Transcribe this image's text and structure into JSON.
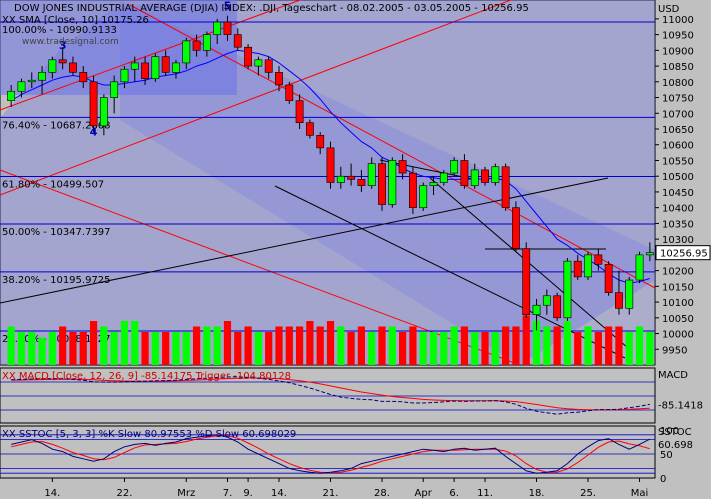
{
  "chart_data": {
    "type": "candlestick",
    "title": "DOW JONES INDUSTRIAL AVERAGE (DJIA) INDEX: .DJI, Tageschart - 08.02.2005 - 03.05.2005 - 10256.95",
    "sma_label": "XX SMA [Close, 10] 10175.26",
    "watermark": "www.tradesignal.com",
    "currency_label": "USD",
    "last_price_label": "10256.95",
    "price_axis": {
      "ylim": [
        9900,
        11060
      ],
      "ticks": [
        "11000",
        "10950",
        "10900",
        "10850",
        "10800",
        "10750",
        "10700",
        "10650",
        "10600",
        "10550",
        "10500",
        "10450",
        "10400",
        "10350",
        "10300",
        "10250",
        "10200",
        "10150",
        "10100",
        "10050",
        "10000",
        "9950"
      ]
    },
    "fib_levels": [
      {
        "label": "100.00% - 10990.9133",
        "value": 10990
      },
      {
        "label": "76.40% - 10687.2868",
        "value": 10687
      },
      {
        "label": "61.80% - 10499.507",
        "value": 10499
      },
      {
        "label": "50.00% - 10347.7397",
        "value": 10348
      },
      {
        "label": "38.20% - 10195.9725",
        "value": 10196
      },
      {
        "label": "23.60% - 10008.1927",
        "value": 10008
      }
    ],
    "wave_labels": [
      {
        "label": "5",
        "bar": 21,
        "value": 11030
      },
      {
        "label": "3",
        "bar": 5,
        "value": 10905
      },
      {
        "label": "4",
        "bar": 8,
        "value": 10630
      }
    ],
    "x_tick_labels": [
      {
        "label": "14.",
        "bar": 4
      },
      {
        "label": "22.",
        "bar": 11
      },
      {
        "label": "Mrz",
        "bar": 17
      },
      {
        "label": "7.",
        "bar": 21
      },
      {
        "label": "9.",
        "bar": 23
      },
      {
        "label": "14.",
        "bar": 26
      },
      {
        "label": "21.",
        "bar": 31
      },
      {
        "label": "28.",
        "bar": 36
      },
      {
        "label": "Apr",
        "bar": 40
      },
      {
        "label": "6.",
        "bar": 43
      },
      {
        "label": "11.",
        "bar": 46
      },
      {
        "label": "18.",
        "bar": 51
      },
      {
        "label": "25.",
        "bar": 56
      },
      {
        "label": "Mai",
        "bar": 61
      }
    ],
    "candles": [
      {
        "o": 10740,
        "h": 10790,
        "l": 10720,
        "c": 10770
      },
      {
        "o": 10770,
        "h": 10810,
        "l": 10750,
        "c": 10800
      },
      {
        "o": 10800,
        "h": 10830,
        "l": 10780,
        "c": 10805
      },
      {
        "o": 10805,
        "h": 10850,
        "l": 10760,
        "c": 10830
      },
      {
        "o": 10830,
        "h": 10880,
        "l": 10810,
        "c": 10870
      },
      {
        "o": 10870,
        "h": 10910,
        "l": 10840,
        "c": 10860
      },
      {
        "o": 10860,
        "h": 10880,
        "l": 10820,
        "c": 10830
      },
      {
        "o": 10830,
        "h": 10850,
        "l": 10780,
        "c": 10800
      },
      {
        "o": 10800,
        "h": 10820,
        "l": 10640,
        "c": 10660
      },
      {
        "o": 10660,
        "h": 10760,
        "l": 10630,
        "c": 10750
      },
      {
        "o": 10750,
        "h": 10820,
        "l": 10700,
        "c": 10800
      },
      {
        "o": 10800,
        "h": 10850,
        "l": 10780,
        "c": 10840
      },
      {
        "o": 10840,
        "h": 10880,
        "l": 10800,
        "c": 10860
      },
      {
        "o": 10860,
        "h": 10880,
        "l": 10790,
        "c": 10810
      },
      {
        "o": 10810,
        "h": 10890,
        "l": 10800,
        "c": 10880
      },
      {
        "o": 10880,
        "h": 10900,
        "l": 10820,
        "c": 10830
      },
      {
        "o": 10830,
        "h": 10870,
        "l": 10810,
        "c": 10860
      },
      {
        "o": 10860,
        "h": 10940,
        "l": 10840,
        "c": 10930
      },
      {
        "o": 10930,
        "h": 10950,
        "l": 10880,
        "c": 10900
      },
      {
        "o": 10900,
        "h": 10960,
        "l": 10880,
        "c": 10950
      },
      {
        "o": 10950,
        "h": 11000,
        "l": 10920,
        "c": 10990
      },
      {
        "o": 10990,
        "h": 11010,
        "l": 10930,
        "c": 10950
      },
      {
        "o": 10950,
        "h": 10970,
        "l": 10900,
        "c": 10910
      },
      {
        "o": 10910,
        "h": 10920,
        "l": 10840,
        "c": 10850
      },
      {
        "o": 10850,
        "h": 10880,
        "l": 10820,
        "c": 10870
      },
      {
        "o": 10870,
        "h": 10880,
        "l": 10810,
        "c": 10830
      },
      {
        "o": 10830,
        "h": 10850,
        "l": 10770,
        "c": 10790
      },
      {
        "o": 10790,
        "h": 10800,
        "l": 10730,
        "c": 10740
      },
      {
        "o": 10740,
        "h": 10760,
        "l": 10650,
        "c": 10670
      },
      {
        "o": 10670,
        "h": 10680,
        "l": 10620,
        "c": 10630
      },
      {
        "o": 10630,
        "h": 10640,
        "l": 10570,
        "c": 10590
      },
      {
        "o": 10590,
        "h": 10610,
        "l": 10460,
        "c": 10480
      },
      {
        "o": 10480,
        "h": 10530,
        "l": 10460,
        "c": 10500
      },
      {
        "o": 10500,
        "h": 10540,
        "l": 10470,
        "c": 10490
      },
      {
        "o": 10490,
        "h": 10520,
        "l": 10450,
        "c": 10470
      },
      {
        "o": 10470,
        "h": 10560,
        "l": 10460,
        "c": 10540
      },
      {
        "o": 10540,
        "h": 10560,
        "l": 10390,
        "c": 10410
      },
      {
        "o": 10410,
        "h": 10560,
        "l": 10400,
        "c": 10550
      },
      {
        "o": 10550,
        "h": 10570,
        "l": 10490,
        "c": 10510
      },
      {
        "o": 10510,
        "h": 10530,
        "l": 10380,
        "c": 10400
      },
      {
        "o": 10400,
        "h": 10480,
        "l": 10390,
        "c": 10470
      },
      {
        "o": 10470,
        "h": 10500,
        "l": 10440,
        "c": 10480
      },
      {
        "o": 10480,
        "h": 10520,
        "l": 10470,
        "c": 10510
      },
      {
        "o": 10510,
        "h": 10560,
        "l": 10500,
        "c": 10550
      },
      {
        "o": 10550,
        "h": 10570,
        "l": 10460,
        "c": 10470
      },
      {
        "o": 10470,
        "h": 10540,
        "l": 10460,
        "c": 10520
      },
      {
        "o": 10520,
        "h": 10530,
        "l": 10470,
        "c": 10480
      },
      {
        "o": 10480,
        "h": 10540,
        "l": 10470,
        "c": 10530
      },
      {
        "o": 10530,
        "h": 10540,
        "l": 10390,
        "c": 10400
      },
      {
        "o": 10400,
        "h": 10420,
        "l": 10260,
        "c": 10270
      },
      {
        "o": 10270,
        "h": 10290,
        "l": 10050,
        "c": 10060
      },
      {
        "o": 10060,
        "h": 10110,
        "l": 10010,
        "c": 10090
      },
      {
        "o": 10090,
        "h": 10140,
        "l": 10060,
        "c": 10120
      },
      {
        "o": 10120,
        "h": 10130,
        "l": 10040,
        "c": 10050
      },
      {
        "o": 10050,
        "h": 10240,
        "l": 10040,
        "c": 10230
      },
      {
        "o": 10230,
        "h": 10250,
        "l": 10170,
        "c": 10180
      },
      {
        "o": 10180,
        "h": 10260,
        "l": 10170,
        "c": 10250
      },
      {
        "o": 10250,
        "h": 10270,
        "l": 10200,
        "c": 10220
      },
      {
        "o": 10220,
        "h": 10230,
        "l": 10120,
        "c": 10130
      },
      {
        "o": 10130,
        "h": 10200,
        "l": 10060,
        "c": 10080
      },
      {
        "o": 10080,
        "h": 10180,
        "l": 10060,
        "c": 10170
      },
      {
        "o": 10170,
        "h": 10260,
        "l": 10160,
        "c": 10250
      },
      {
        "o": 10250,
        "h": 10290,
        "l": 10230,
        "c": 10257
      }
    ],
    "sma": [
      10740,
      10760,
      10775,
      10790,
      10805,
      10815,
      10820,
      10815,
      10800,
      10790,
      10790,
      10795,
      10800,
      10805,
      10815,
      10820,
      10825,
      10835,
      10850,
      10860,
      10875,
      10890,
      10900,
      10895,
      10890,
      10880,
      10860,
      10835,
      10810,
      10780,
      10745,
      10705,
      10670,
      10640,
      10610,
      10590,
      10560,
      10545,
      10525,
      10510,
      10500,
      10495,
      10490,
      10490,
      10490,
      10492,
      10490,
      10495,
      10485,
      10460,
      10420,
      10380,
      10340,
      10300,
      10280,
      10255,
      10235,
      10215,
      10190,
      10170,
      10160,
      10165,
      10175
    ],
    "volume": [
      0.35,
      0.3,
      0.3,
      0.25,
      0.3,
      0.35,
      0.3,
      0.3,
      0.4,
      0.35,
      0.3,
      0.4,
      0.4,
      0.3,
      0.3,
      0.3,
      0.3,
      0.3,
      0.35,
      0.35,
      0.35,
      0.4,
      0.3,
      0.35,
      0.3,
      0.3,
      0.35,
      0.35,
      0.35,
      0.4,
      0.35,
      0.4,
      0.35,
      0.3,
      0.35,
      0.3,
      0.35,
      0.35,
      0.3,
      0.35,
      0.3,
      0.3,
      0.3,
      0.35,
      0.35,
      0.3,
      0.3,
      0.3,
      0.35,
      0.35,
      0.45,
      0.4,
      0.35,
      0.35,
      0.4,
      0.3,
      0.35,
      0.3,
      0.35,
      0.35,
      0.3,
      0.35,
      0.3
    ],
    "macd": {
      "label": "XX MACD [Close, 12, 26, 9] -85.14175 Trigger -104.80128",
      "axis_title": "MACD",
      "last_label": "-85.1418",
      "ylim": [
        -180,
        100
      ],
      "macd": [
        40,
        42,
        44,
        45,
        46,
        45,
        42,
        38,
        30,
        28,
        28,
        30,
        32,
        33,
        35,
        36,
        38,
        42,
        45,
        48,
        52,
        54,
        55,
        52,
        48,
        42,
        34,
        25,
        12,
        -2,
        -18,
        -35,
        -48,
        -55,
        -60,
        -62,
        -70,
        -70,
        -72,
        -78,
        -78,
        -76,
        -72,
        -68,
        -70,
        -68,
        -68,
        -66,
        -72,
        -85,
        -105,
        -120,
        -128,
        -135,
        -128,
        -125,
        -118,
        -112,
        -112,
        -110,
        -102,
        -95,
        -85
      ],
      "trigger": [
        38,
        39,
        40,
        41,
        42,
        43,
        43,
        42,
        40,
        37,
        35,
        34,
        33,
        33,
        33,
        34,
        35,
        37,
        39,
        41,
        44,
        46,
        48,
        49,
        49,
        48,
        45,
        41,
        35,
        28,
        19,
        9,
        -2,
        -12,
        -22,
        -30,
        -38,
        -45,
        -50,
        -55,
        -60,
        -63,
        -65,
        -66,
        -67,
        -67,
        -67,
        -67,
        -68,
        -71,
        -78,
        -86,
        -94,
        -102,
        -107,
        -111,
        -113,
        -113,
        -113,
        -112,
        -110,
        -107,
        -105
      ]
    },
    "sstoc": {
      "label": "XX SSTOC [5, 3, 3] %K Slow 80.97553   %D Slow 60.698029",
      "axis_title": "SSTOC",
      "last_label": "60.698",
      "ylim": [
        0,
        100
      ],
      "ticks": [
        "100",
        "50",
        "0"
      ],
      "k": [
        70,
        75,
        80,
        72,
        60,
        55,
        45,
        40,
        35,
        40,
        55,
        65,
        70,
        72,
        68,
        72,
        75,
        82,
        85,
        88,
        90,
        85,
        75,
        60,
        50,
        40,
        30,
        20,
        15,
        12,
        10,
        12,
        15,
        20,
        30,
        35,
        40,
        45,
        50,
        55,
        60,
        58,
        55,
        60,
        62,
        58,
        60,
        62,
        45,
        30,
        15,
        10,
        12,
        15,
        30,
        50,
        65,
        78,
        82,
        70,
        60,
        70,
        81
      ],
      "d": [
        65,
        70,
        75,
        76,
        70,
        62,
        53,
        47,
        40,
        38,
        43,
        53,
        63,
        69,
        70,
        71,
        72,
        76,
        81,
        85,
        88,
        88,
        83,
        73,
        62,
        50,
        40,
        30,
        22,
        16,
        12,
        11,
        12,
        16,
        22,
        28,
        35,
        40,
        45,
        50,
        55,
        58,
        58,
        58,
        59,
        60,
        60,
        60,
        56,
        46,
        30,
        18,
        12,
        12,
        19,
        32,
        48,
        64,
        75,
        77,
        71,
        67,
        61
      ]
    }
  }
}
